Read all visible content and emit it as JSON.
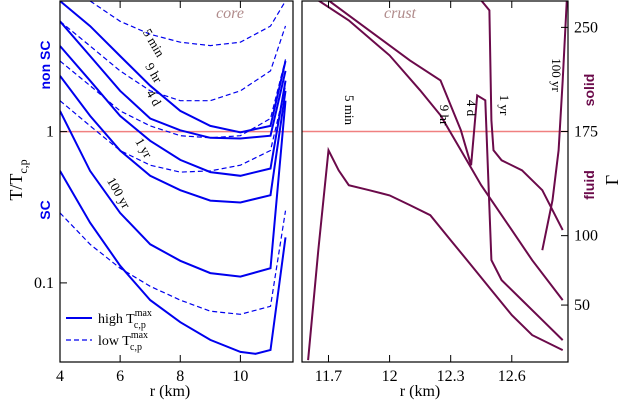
{
  "chart_data": [
    {
      "type": "line",
      "title": "core",
      "log_y": true,
      "xlabel": "r (km)",
      "ylabel": {
        "text": "T/T",
        "sub": "c,p"
      },
      "side_labels": [
        "non SC",
        "SC"
      ],
      "side_color": "#0000ee",
      "xlim": [
        4,
        11.75
      ],
      "ylim": [
        0.03,
        7.3
      ],
      "xticks": [
        4,
        6,
        8,
        10
      ],
      "yticks": [
        0.1,
        1
      ],
      "reference_line": 1,
      "reference_color": "#f08080",
      "annotations": [
        "5 min",
        "9 hr",
        "4 d",
        "1 yr",
        "100 yr"
      ],
      "legend": [
        {
          "text": "high T",
          "sup": "max",
          "sub": "c,p",
          "dash": false
        },
        {
          "text": "low T",
          "sup": "max",
          "sub": "c,p",
          "dash": true
        }
      ],
      "series": [
        {
          "color": "#0000ee",
          "dash": false,
          "x": [
            4,
            5,
            6,
            7,
            8,
            9,
            10,
            11,
            11.5
          ],
          "values": [
            7.3,
            4.98,
            3.16,
            2.01,
            1.37,
            1.09,
            0.99,
            1.09,
            2.93
          ]
        },
        {
          "color": "#0000ee",
          "dash": false,
          "x": [
            4,
            5,
            6,
            7,
            8,
            9,
            10,
            11,
            11.5
          ],
          "values": [
            5.36,
            3.16,
            1.86,
            1.22,
            1.02,
            0.91,
            0.9,
            0.94,
            2.52
          ]
        },
        {
          "color": "#0000ee",
          "dash": false,
          "x": [
            4,
            5,
            6,
            7,
            8,
            9,
            10,
            11,
            11.5
          ],
          "values": [
            3.68,
            2.17,
            1.27,
            0.87,
            0.65,
            0.54,
            0.51,
            0.57,
            2.17
          ]
        },
        {
          "color": "#0000ee",
          "dash": false,
          "x": [
            4,
            5,
            6,
            7,
            8,
            9,
            10,
            11,
            11.5
          ],
          "values": [
            2.34,
            1.27,
            0.75,
            0.51,
            0.41,
            0.35,
            0.34,
            0.38,
            1.86
          ]
        },
        {
          "color": "#0000ee",
          "dash": false,
          "x": [
            4,
            5,
            6,
            7,
            8,
            9,
            10,
            11,
            11.5
          ],
          "values": [
            1.37,
            0.55,
            0.29,
            0.18,
            0.14,
            0.116,
            0.11,
            0.125,
            1.6
          ]
        },
        {
          "color": "#0000ee",
          "dash": false,
          "x": [
            4,
            5,
            6,
            7,
            8,
            9,
            10,
            10.5,
            11,
            11.5
          ],
          "values": [
            0.55,
            0.25,
            0.13,
            0.077,
            0.055,
            0.042,
            0.035,
            0.034,
            0.036,
            0.2
          ]
        },
        {
          "color": "#0000ee",
          "dash": true,
          "x": [
            5,
            6,
            7,
            8,
            9,
            10,
            11,
            11.5
          ],
          "values": [
            7.3,
            5.36,
            4.4,
            3.9,
            3.7,
            3.9,
            4.98,
            7.3
          ]
        },
        {
          "color": "#0000ee",
          "dash": true,
          "x": [
            4,
            5,
            6,
            7,
            8,
            9,
            10,
            11,
            11.5
          ],
          "values": [
            5.36,
            3.68,
            2.52,
            1.86,
            1.6,
            1.6,
            1.86,
            2.52,
            5
          ]
        },
        {
          "color": "#0000ee",
          "dash": true,
          "x": [
            4,
            5,
            6,
            7,
            8,
            9,
            10,
            11,
            11.5
          ],
          "values": [
            2.93,
            2.01,
            1.37,
            1.09,
            0.94,
            0.91,
            0.94,
            1.22,
            3
          ]
        },
        {
          "color": "#0000ee",
          "dash": true,
          "x": [
            4,
            5,
            6,
            7,
            8,
            9,
            10,
            11,
            11.5
          ],
          "values": [
            1.6,
            1.09,
            0.75,
            0.6,
            0.54,
            0.55,
            0.6,
            0.75,
            2
          ]
        },
        {
          "color": "#0000ee",
          "dash": true,
          "x": [
            4,
            5,
            6,
            7,
            8,
            9,
            10,
            11,
            11.5
          ],
          "values": [
            0.29,
            0.18,
            0.125,
            0.095,
            0.077,
            0.065,
            0.062,
            0.07,
            0.3
          ]
        }
      ]
    },
    {
      "type": "line",
      "title": "crust",
      "log_y": false,
      "xlabel": "r (km)",
      "ylabel": {
        "text": "Γ"
      },
      "side_labels": [
        "solid",
        "fluid"
      ],
      "side_color": "#6b0a4a",
      "xlim": [
        11.57,
        12.876
      ],
      "ylim": [
        9,
        269
      ],
      "xticks": [
        11.7,
        12,
        12.3,
        12.6
      ],
      "yticks": [
        50,
        100,
        175,
        250
      ],
      "reference_line": 175,
      "reference_color": "#f08080",
      "annotations": [
        "5 min",
        "9 hr",
        "4 d",
        "1 yr",
        "100 yr"
      ],
      "series": [
        {
          "color": "#6b0a4a",
          "dash": false,
          "x": [
            11.6,
            11.65,
            11.7,
            11.75,
            11.8,
            11.9,
            12.0,
            12.1,
            12.2,
            12.3,
            12.4,
            12.5,
            12.6,
            12.7,
            12.85
          ],
          "values": [
            10.4,
            89.5,
            161.5,
            147,
            136.3,
            132.7,
            129,
            122,
            114.7,
            96.7,
            78.8,
            60.8,
            42.8,
            28.4,
            17.6
          ]
        },
        {
          "color": "#6b0a4a",
          "dash": false,
          "x": [
            11.65,
            11.8,
            12.0,
            12.15,
            12.25,
            12.35,
            12.45,
            12.5,
            12.6,
            12.7,
            12.85
          ],
          "values": [
            269.4,
            255,
            229.8,
            204.7,
            186.7,
            161.5,
            136.3,
            125.5,
            104,
            82.3,
            53.6
          ]
        },
        {
          "color": "#6b0a4a",
          "dash": false,
          "x": [
            11.7,
            11.9,
            12.1,
            12.25,
            12.35,
            12.4,
            12.43,
            12.47,
            12.5,
            12.55,
            12.65,
            12.75,
            12.85
          ],
          "values": [
            269.4,
            247.8,
            226.2,
            211.8,
            175.9,
            150.7,
            201,
            197.5,
            82.4,
            68,
            53.6,
            39.2,
            24.8
          ]
        },
        {
          "color": "#6b0a4a",
          "dash": false,
          "x": [
            12.45,
            12.49,
            12.5,
            12.51,
            12.55,
            12.65,
            12.75,
            12.85
          ],
          "values": [
            269.4,
            262.2,
            183.1,
            161.5,
            154.3,
            147.1,
            132.7,
            104
          ]
        },
        {
          "color": "#6b0a4a",
          "dash": false,
          "x": [
            12.75,
            12.8,
            12.83,
            12.85,
            12.87
          ],
          "values": [
            89.5,
            125.5,
            161.5,
            211.8,
            269.4
          ]
        }
      ]
    }
  ]
}
